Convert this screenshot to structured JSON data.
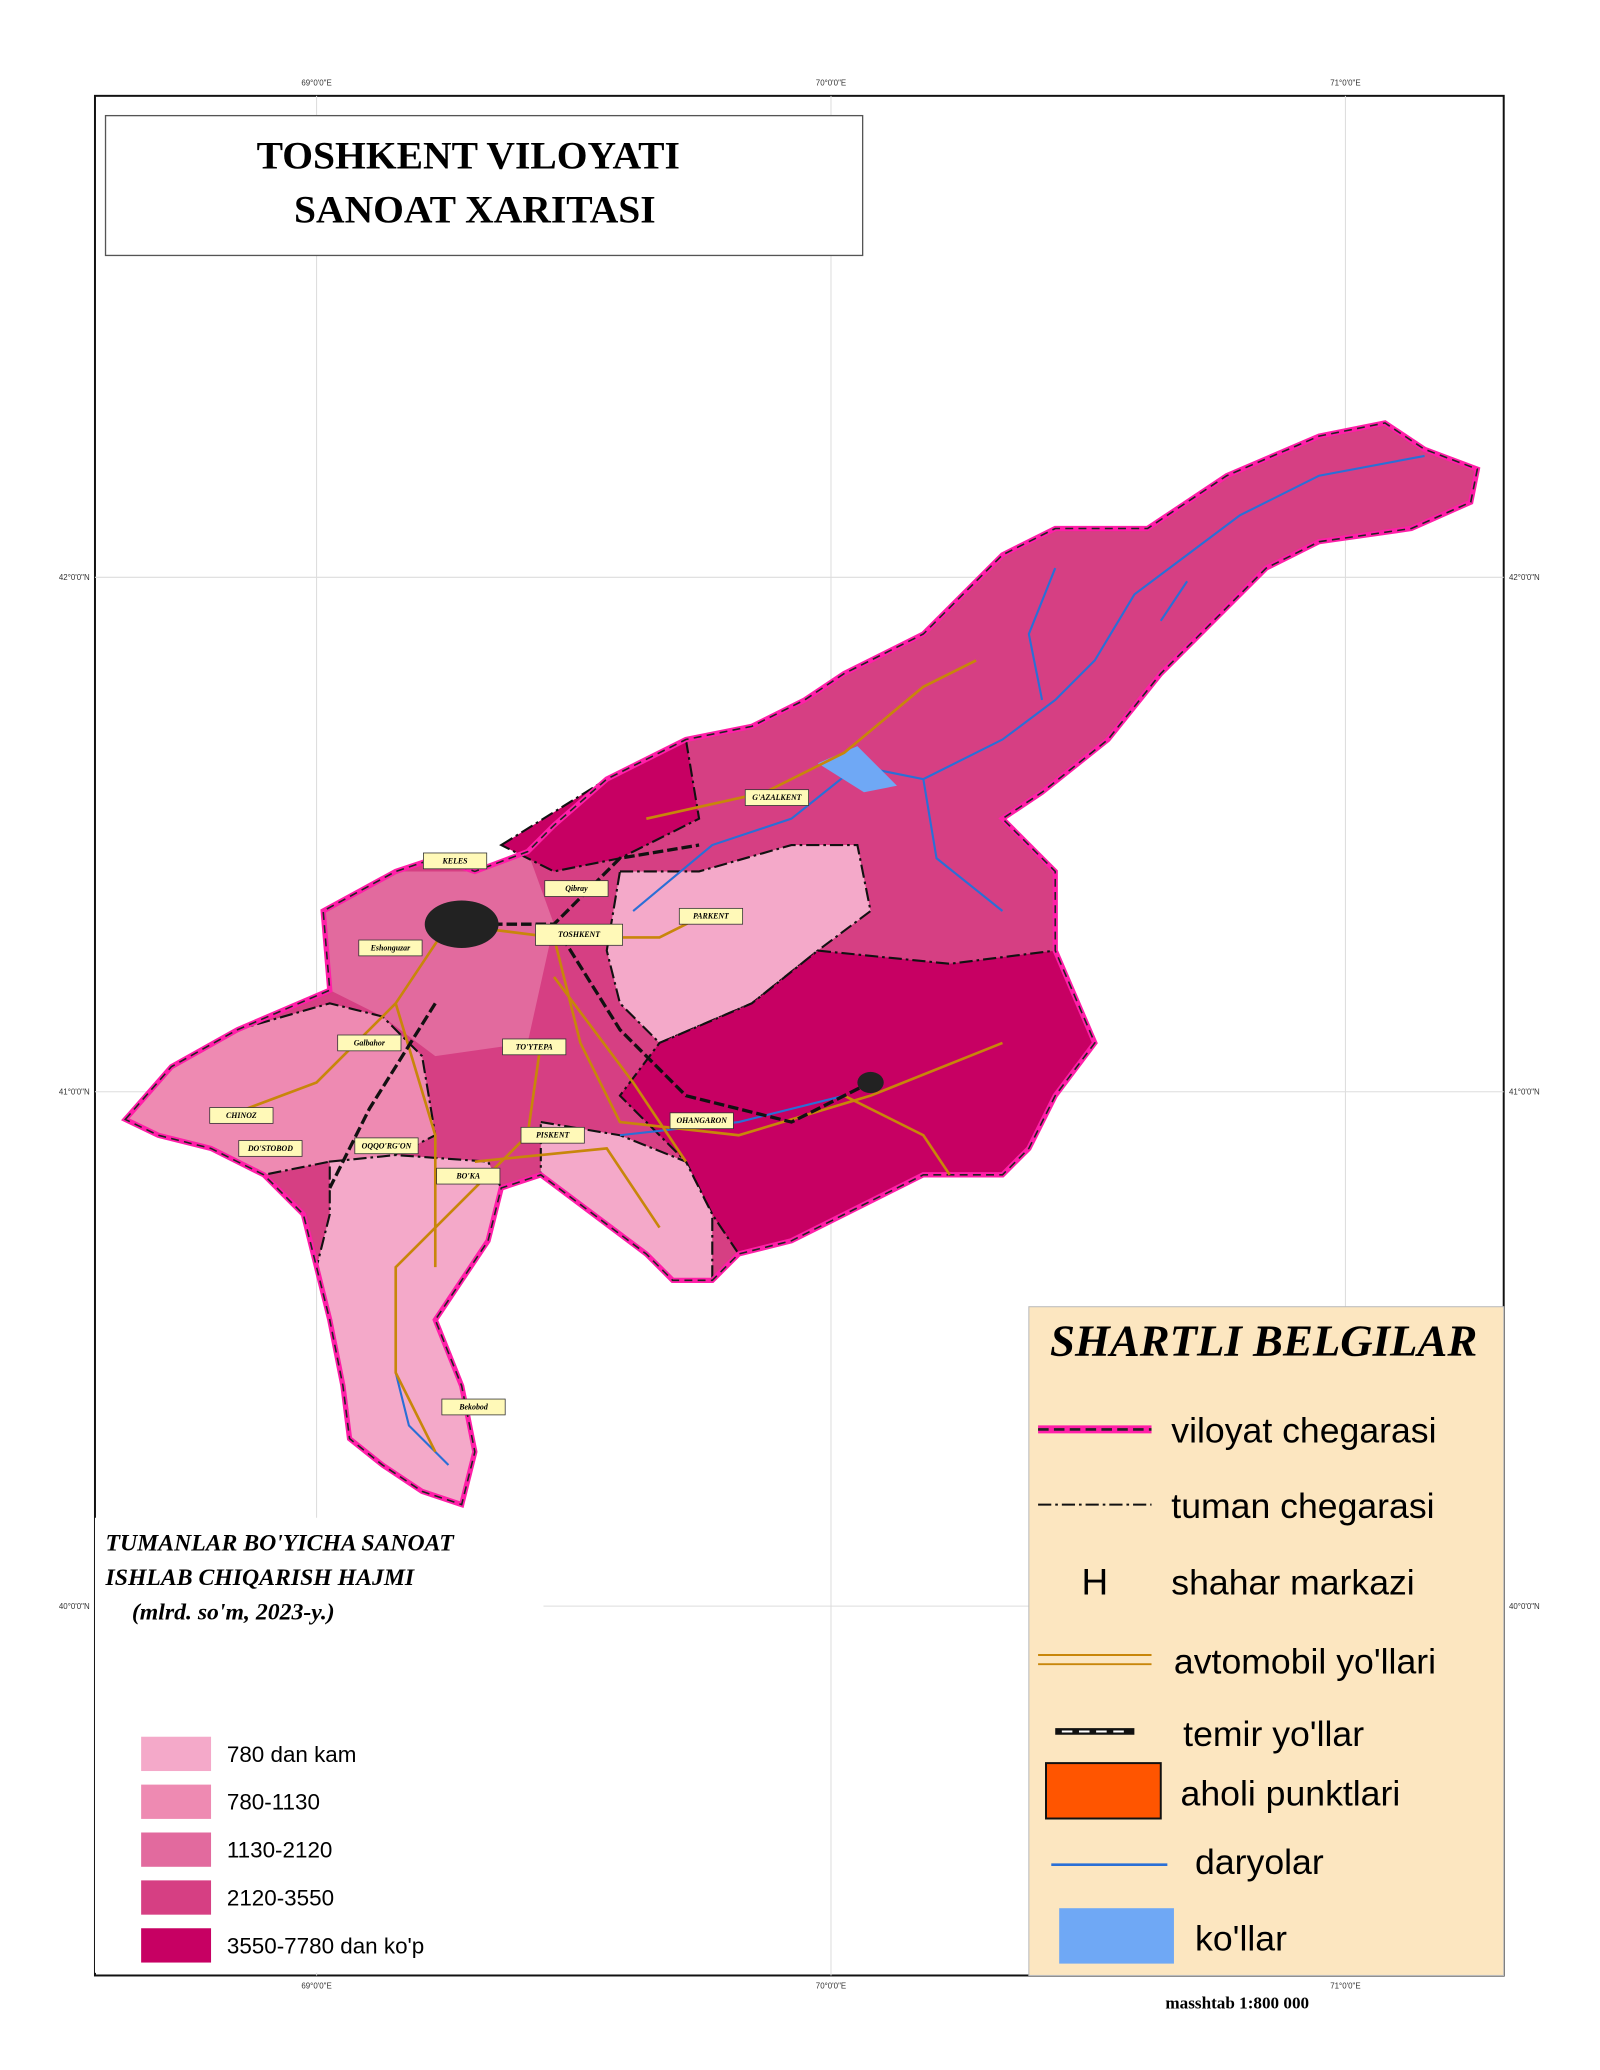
{
  "header": {
    "title_lines": [
      "TOSHKENT VILOYATI",
      "SANOAT  XARITASI"
    ]
  },
  "graticule": {
    "longitude": [
      "69°0'0\"E",
      "70°0'0\"E",
      "71°0'0\"E"
    ],
    "latitude": [
      "42°0'0\"N",
      "41°0'0\"N",
      "40°0'0\"N"
    ]
  },
  "places": [
    "KELES",
    "Qibray",
    "TOSHKENT",
    "PARKENT",
    "G'AZALKENT",
    "Eshonguzar",
    "Galbahor",
    "TO'YTEPA",
    "CHINOZ",
    "DO'STOBOD",
    "OQQO'RG'ON",
    "PISKENT",
    "BO'KA",
    "OHANGARON",
    "Bekobod"
  ],
  "thematic_legend": {
    "title_lines": [
      "TUMANLAR BO'YICHA SANOAT",
      "ISHLAB CHIQARISH HAJMI",
      "(mlrd. so'm, 2023-y.)"
    ],
    "classes": [
      {
        "label": "780 dan kam",
        "color": "#f4a9c9"
      },
      {
        "label": "780-1130",
        "color": "#ee8ab2"
      },
      {
        "label": "1130-2120",
        "color": "#e26a9e"
      },
      {
        "label": "2120-3550",
        "color": "#d63f83"
      },
      {
        "label": "3550-7780 dan ko'p",
        "color": "#c70063"
      }
    ]
  },
  "symbol_legend": {
    "title": "SHARTLI BELGILAR",
    "items": [
      {
        "label": "viloyat chegarasi"
      },
      {
        "label": "tuman chegarasi"
      },
      {
        "symbol": "H",
        "label": "shahar markazi"
      },
      {
        "label": "avtomobil yo'llari"
      },
      {
        "label": "temir yo'llar"
      },
      {
        "label": "aholi punktlari"
      },
      {
        "label": "daryolar"
      },
      {
        "label": "ko'llar"
      }
    ]
  },
  "scale": "masshtab 1:800 000"
}
